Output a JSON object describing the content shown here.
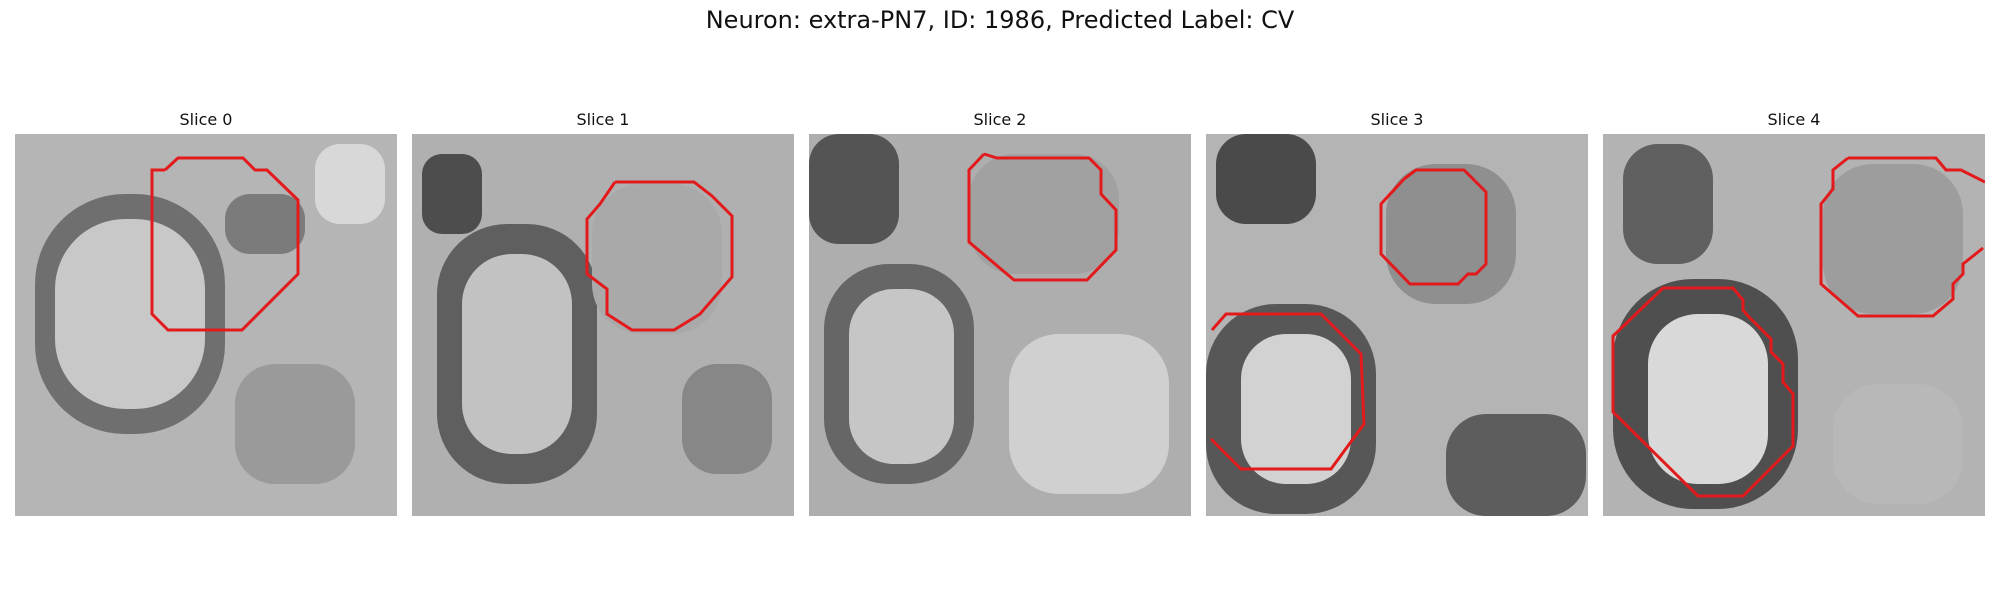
{
  "title": "Neuron: extra-PN7, ID: 1986, Predicted Label: CV",
  "slices": [
    {
      "label": "Slice 0"
    },
    {
      "label": "Slice 1"
    },
    {
      "label": "Slice 2"
    },
    {
      "label": "Slice 3"
    },
    {
      "label": "Slice 4"
    }
  ],
  "colors": {
    "contour": "#e31a1c",
    "background": "#ffffff"
  }
}
